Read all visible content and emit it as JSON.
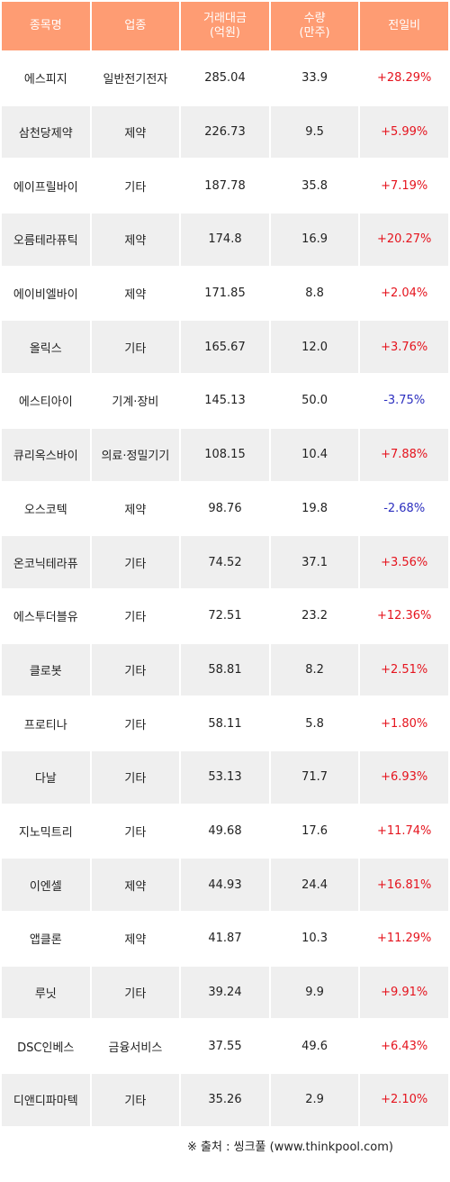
{
  "table": {
    "columns": [
      "종목명",
      "업종",
      "거래대금\n(억원)",
      "수량\n(만주)",
      "전일비"
    ],
    "rows": [
      {
        "name": "에스피지",
        "sector": "일반전기전자",
        "amount": "285.04",
        "volume": "33.9",
        "change": "+28.29%",
        "direction": "up"
      },
      {
        "name": "삼천당제약",
        "sector": "제약",
        "amount": "226.73",
        "volume": "9.5",
        "change": "+5.99%",
        "direction": "up"
      },
      {
        "name": "에이프릴바이",
        "sector": "기타",
        "amount": "187.78",
        "volume": "35.8",
        "change": "+7.19%",
        "direction": "up"
      },
      {
        "name": "오름테라퓨틱",
        "sector": "제약",
        "amount": "174.8",
        "volume": "16.9",
        "change": "+20.27%",
        "direction": "up"
      },
      {
        "name": "에이비엘바이",
        "sector": "제약",
        "amount": "171.85",
        "volume": "8.8",
        "change": "+2.04%",
        "direction": "up"
      },
      {
        "name": "올릭스",
        "sector": "기타",
        "amount": "165.67",
        "volume": "12.0",
        "change": "+3.76%",
        "direction": "up"
      },
      {
        "name": "에스티아이",
        "sector": "기계·장비",
        "amount": "145.13",
        "volume": "50.0",
        "change": "-3.75%",
        "direction": "down"
      },
      {
        "name": "큐리옥스바이",
        "sector": "의료·정밀기기",
        "amount": "108.15",
        "volume": "10.4",
        "change": "+7.88%",
        "direction": "up"
      },
      {
        "name": "오스코텍",
        "sector": "제약",
        "amount": "98.76",
        "volume": "19.8",
        "change": "-2.68%",
        "direction": "down"
      },
      {
        "name": "온코닉테라퓨",
        "sector": "기타",
        "amount": "74.52",
        "volume": "37.1",
        "change": "+3.56%",
        "direction": "up"
      },
      {
        "name": "에스투더블유",
        "sector": "기타",
        "amount": "72.51",
        "volume": "23.2",
        "change": "+12.36%",
        "direction": "up"
      },
      {
        "name": "클로봇",
        "sector": "기타",
        "amount": "58.81",
        "volume": "8.2",
        "change": "+2.51%",
        "direction": "up"
      },
      {
        "name": "프로티나",
        "sector": "기타",
        "amount": "58.11",
        "volume": "5.8",
        "change": "+1.80%",
        "direction": "up"
      },
      {
        "name": "다날",
        "sector": "기타",
        "amount": "53.13",
        "volume": "71.7",
        "change": "+6.93%",
        "direction": "up"
      },
      {
        "name": "지노믹트리",
        "sector": "기타",
        "amount": "49.68",
        "volume": "17.6",
        "change": "+11.74%",
        "direction": "up"
      },
      {
        "name": "이엔셀",
        "sector": "제약",
        "amount": "44.93",
        "volume": "24.4",
        "change": "+16.81%",
        "direction": "up"
      },
      {
        "name": "앱클론",
        "sector": "제약",
        "amount": "41.87",
        "volume": "10.3",
        "change": "+11.29%",
        "direction": "up"
      },
      {
        "name": "루닛",
        "sector": "기타",
        "amount": "39.24",
        "volume": "9.9",
        "change": "+9.91%",
        "direction": "up"
      },
      {
        "name": "DSC인베스",
        "sector": "금융서비스",
        "amount": "37.55",
        "volume": "49.6",
        "change": "+6.43%",
        "direction": "up"
      },
      {
        "name": "디앤디파마텍",
        "sector": "기타",
        "amount": "35.26",
        "volume": "2.9",
        "change": "+2.10%",
        "direction": "up"
      }
    ]
  },
  "source": "※ 출처 : 씽크풀 (www.thinkpool.com)",
  "colors": {
    "header_bg": "#fe9c73",
    "row_alt_bg": "#efefef",
    "up": "#e5141e",
    "down": "#2c2fbf"
  }
}
